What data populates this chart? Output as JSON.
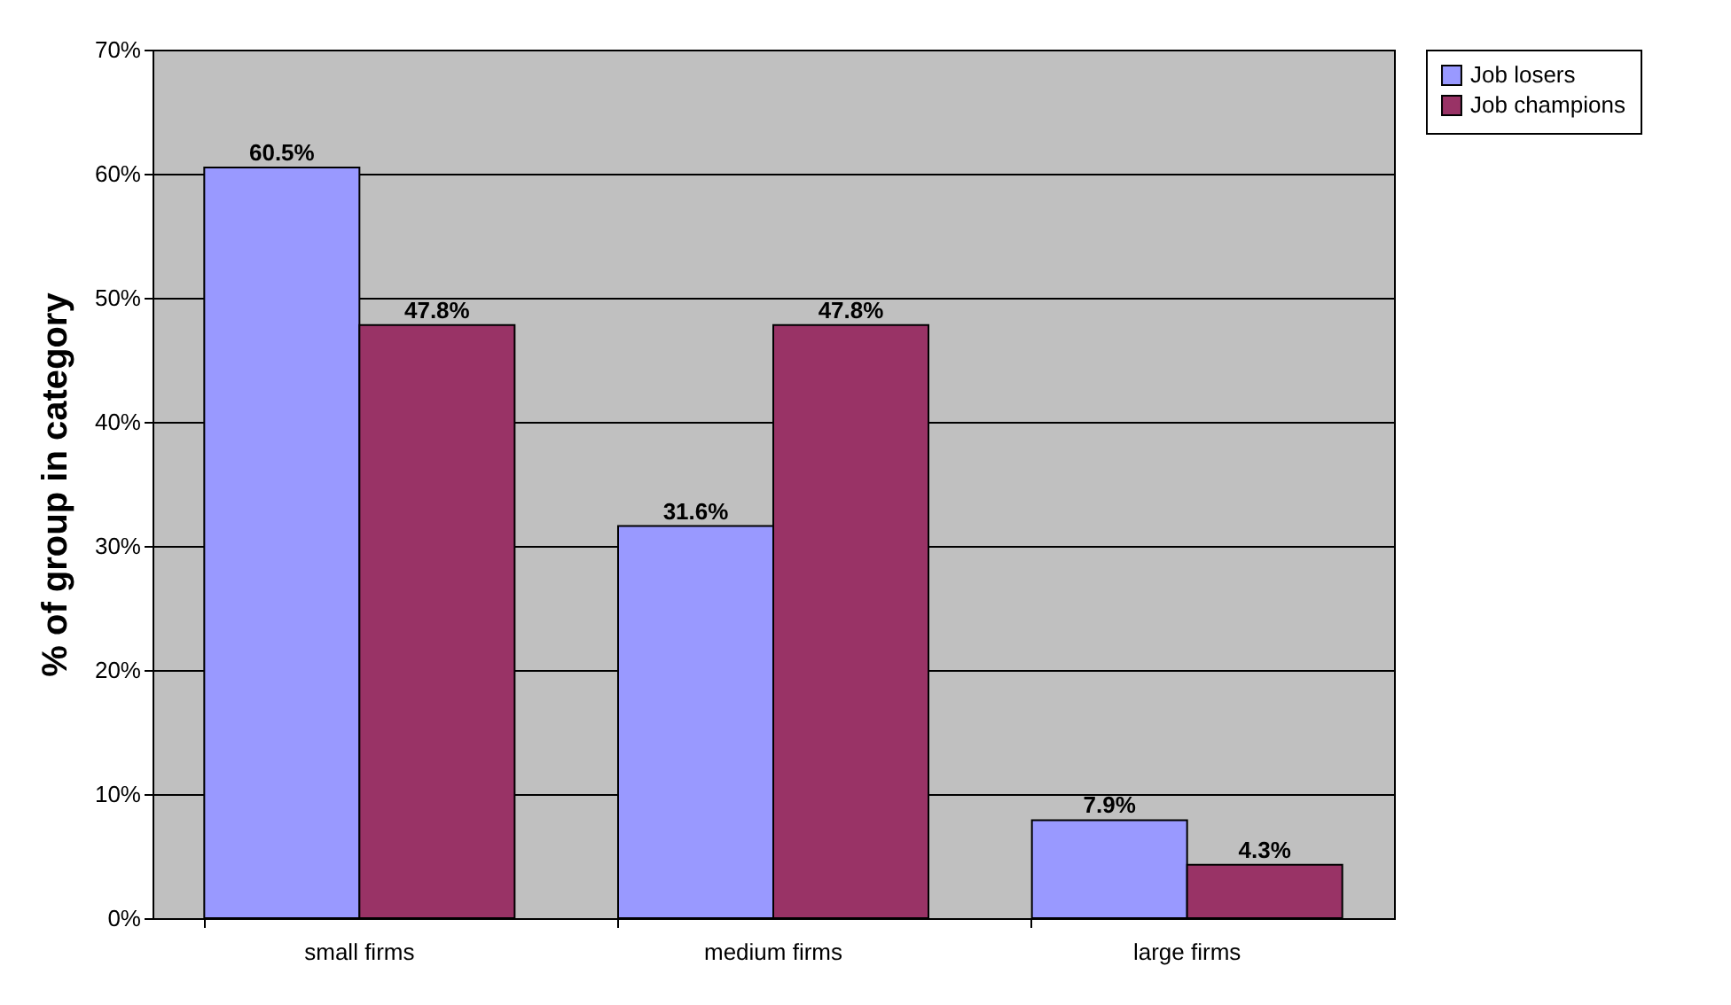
{
  "chart_data": {
    "type": "bar",
    "ylabel": "% of group in category",
    "categories": [
      "small firms",
      "medium firms",
      "large firms"
    ],
    "series": [
      {
        "name": "Job losers",
        "color": "#9999ff",
        "values": [
          60.5,
          31.6,
          7.9
        ],
        "value_labels": [
          "60.5%",
          "31.6%",
          "7.9%"
        ]
      },
      {
        "name": "Job champions",
        "color": "#993366",
        "values": [
          47.8,
          47.8,
          4.3
        ],
        "value_labels": [
          "47.8%",
          "47.8%",
          "4.3%"
        ]
      }
    ],
    "ylim": [
      0,
      70
    ],
    "yticks": [
      {
        "value": 0,
        "label": "0%"
      },
      {
        "value": 10,
        "label": "10%"
      },
      {
        "value": 20,
        "label": "20%"
      },
      {
        "value": 30,
        "label": "30%"
      },
      {
        "value": 40,
        "label": "40%"
      },
      {
        "value": 50,
        "label": "50%"
      },
      {
        "value": 60,
        "label": "60%"
      },
      {
        "value": 70,
        "label": "70%"
      }
    ],
    "grid": "y",
    "legend": "right"
  }
}
